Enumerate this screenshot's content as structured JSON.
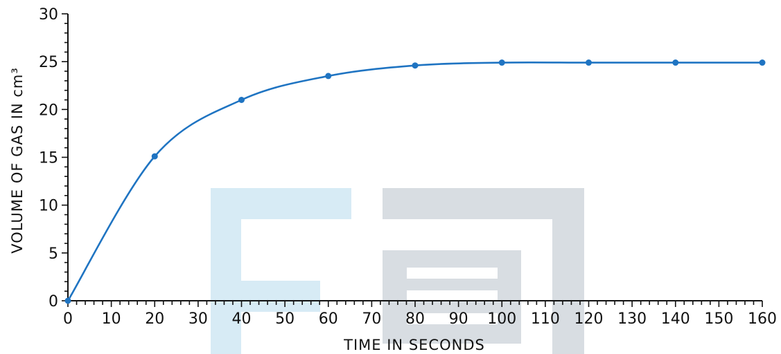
{
  "chart_data": {
    "type": "line",
    "title": "",
    "xlabel": "TIME IN SECONDS",
    "ylabel": "VOLUME OF GAS IN cm³",
    "xlim": [
      0,
      160
    ],
    "ylim": [
      0,
      30
    ],
    "x_ticks": [
      0,
      10,
      20,
      30,
      40,
      50,
      60,
      70,
      80,
      90,
      100,
      110,
      120,
      130,
      140,
      150,
      160
    ],
    "y_ticks": [
      0,
      5,
      10,
      15,
      20,
      25,
      30
    ],
    "grid": false,
    "legend": "none",
    "series": [
      {
        "x": [
          0,
          20,
          40,
          60,
          80,
          100,
          120,
          140,
          160
        ],
        "y": [
          0,
          15.1,
          21.0,
          23.5,
          24.6,
          24.9,
          24.9,
          24.9,
          24.9
        ],
        "color": "#1f74c2"
      }
    ]
  }
}
